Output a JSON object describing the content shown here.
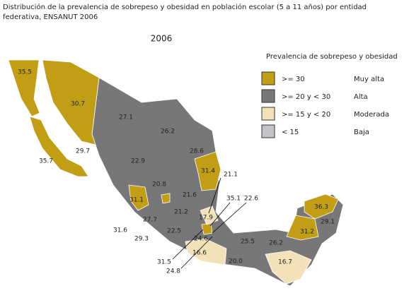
{
  "header": {
    "title": "Distribución de la prevalencia de sobrepeso y obesidad en población escolar (5 a 11 años) por entidad",
    "title_line2": "federativa, ENSANUT 2006",
    "year": "2006"
  },
  "legend": {
    "title": "Prevalencia de sobrepeso y obesidad",
    "items": [
      {
        "range": ">= 30",
        "category": "Muy alta"
      },
      {
        "range": ">= 20 y < 30",
        "category": "Alta"
      },
      {
        "range": ">= 15 y < 20",
        "category": "Moderada"
      },
      {
        "range": "< 15",
        "category": "Baja"
      }
    ]
  },
  "regions": [
    "35.5",
    "30.7",
    "27.1",
    "26.2",
    "28.6",
    "29.7",
    "35.7",
    "22.9",
    "31.4",
    "21.1",
    "20.8",
    "21.6",
    "31.1",
    "35.1",
    "22.6",
    "21.2",
    "17.9",
    "27.7",
    "31.6",
    "22.5",
    "24.6",
    "29.3",
    "25.5",
    "26.2",
    "31.2",
    "29.1",
    "36.3",
    "16.6",
    "31.5",
    "20.0",
    "16.7",
    "24.8"
  ]
}
